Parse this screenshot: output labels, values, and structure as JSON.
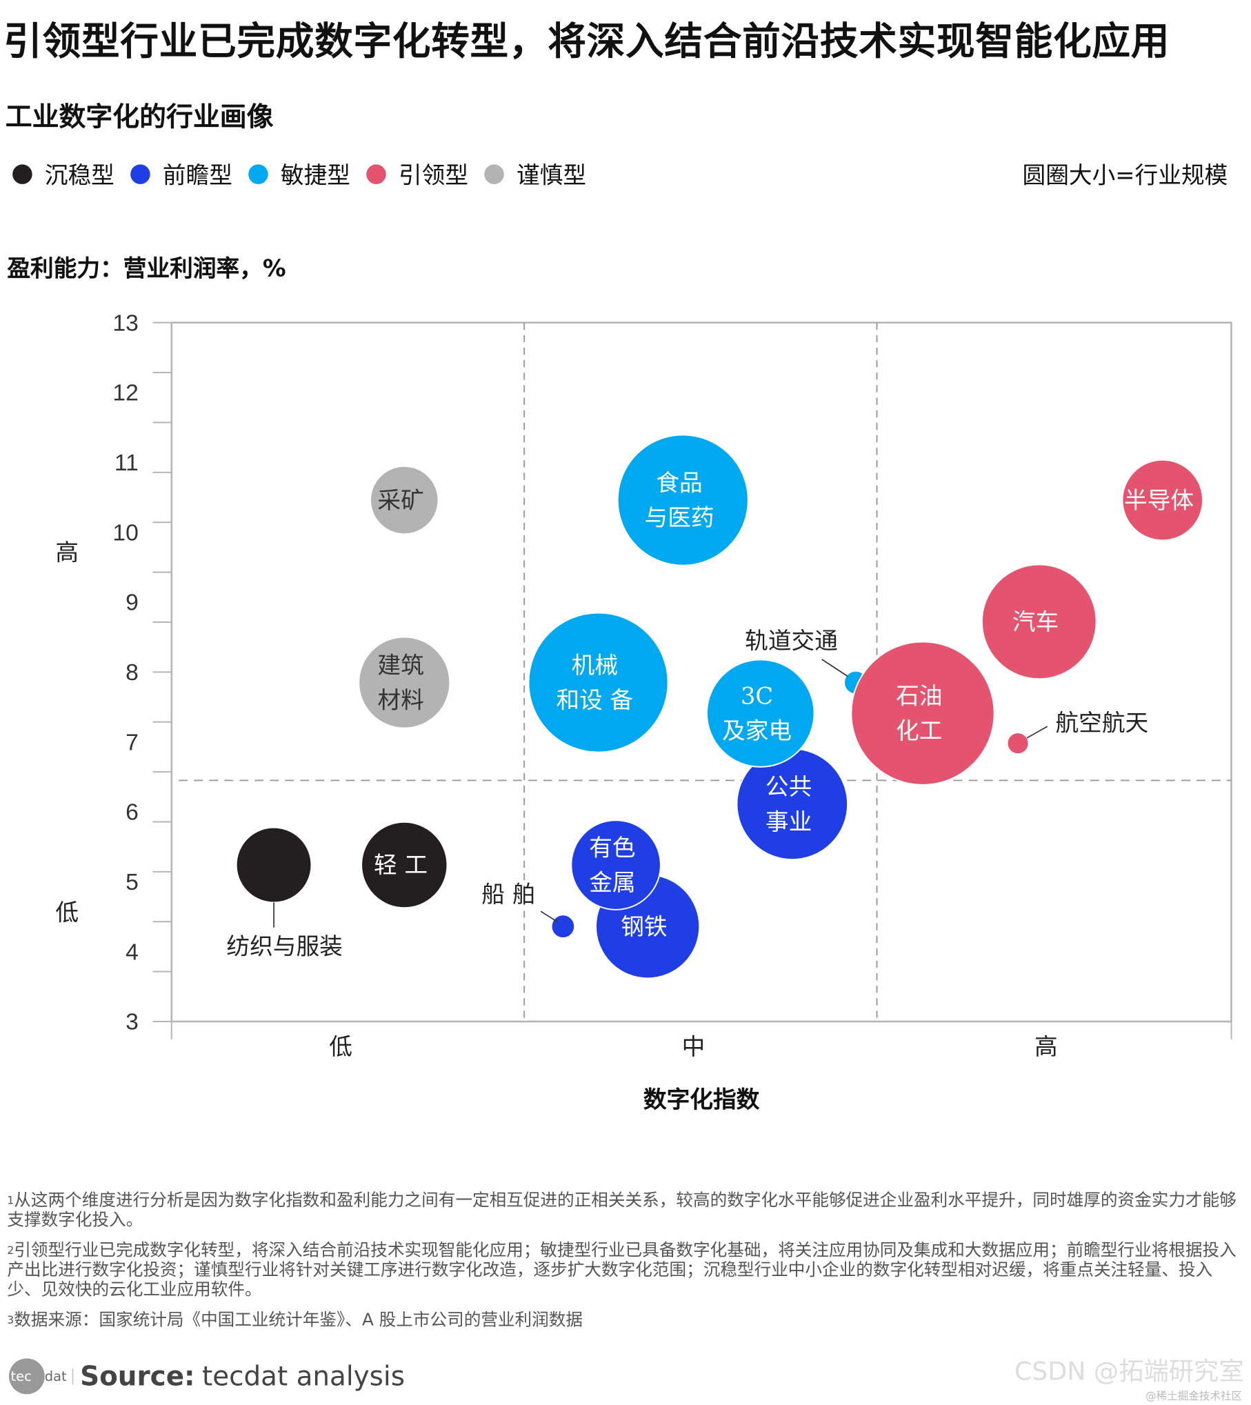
{
  "title": "引领型行业已完成数字化转型，将深入结合前沿技术实现智能化应用",
  "subtitle": "工业数字化的行业画像",
  "legend": [
    {
      "label": "沉稳型",
      "color": "#231f20"
    },
    {
      "label": "前瞻型",
      "color": "#1f3fe5"
    },
    {
      "label": "敏捷型",
      "color": "#00a8ef"
    },
    {
      "label": "引领型",
      "color": "#e5546f"
    },
    {
      "label": "谨慎型",
      "color": "#b3b3b3"
    }
  ],
  "size_note": "圆圈大小=行业规模",
  "chart_data": {
    "type": "scatter",
    "subtype": "bubble",
    "ylabel": "盈利能力：营业利润率，%",
    "xlabel": "数字化指数",
    "ylim": [
      3,
      13
    ],
    "yticks": [
      "3",
      "4",
      "5",
      "6",
      "7",
      "8",
      "9",
      "10",
      "11",
      "12",
      "13"
    ],
    "y_level_labels": {
      "high": "高",
      "low": "低"
    },
    "xlim": [
      0,
      3
    ],
    "x_categories": [
      "低",
      "中",
      "高"
    ],
    "x_dividers": [
      1,
      2
    ],
    "y_divider": 6.45,
    "points": [
      {
        "name": [
          "采矿"
        ],
        "type": "谨慎型",
        "x": 0.66,
        "y": 10.46,
        "size": 38
      },
      {
        "name": [
          "建筑",
          "材料"
        ],
        "type": "谨慎型",
        "x": 0.66,
        "y": 7.85,
        "size": 51
      },
      {
        "name": [
          "纺织与服装"
        ],
        "type": "沉稳型",
        "x": 0.29,
        "y": 5.24,
        "size": 42,
        "outside": true
      },
      {
        "name": [
          "轻 工"
        ],
        "type": "沉稳型",
        "x": 0.66,
        "y": 5.24,
        "size": 48
      },
      {
        "name": [
          "食品",
          "与医药"
        ],
        "type": "敏捷型",
        "x": 1.45,
        "y": 10.46,
        "size": 73
      },
      {
        "name": [
          "机械",
          "和设  备"
        ],
        "type": "敏捷型",
        "x": 1.21,
        "y": 7.85,
        "size": 78
      },
      {
        "name": [
          "公共",
          "事业"
        ],
        "type": "前瞻型",
        "x": 1.76,
        "y": 6.11,
        "size": 62
      },
      {
        "name": [
          "3C",
          "及家电"
        ],
        "type": "敏捷型",
        "x": 1.67,
        "y": 7.41,
        "size": 60
      },
      {
        "name": [
          "轨道交通"
        ],
        "type": "敏捷型",
        "x": 1.94,
        "y": 7.85,
        "size": 13,
        "outside": true
      },
      {
        "name": [
          "钢铁"
        ],
        "type": "前瞻型",
        "x": 1.35,
        "y": 4.36,
        "size": 58
      },
      {
        "name": [
          "有色",
          "金属"
        ],
        "type": "前瞻型",
        "x": 1.26,
        "y": 5.24,
        "size": 50
      },
      {
        "name": [
          "船 舶"
        ],
        "type": "前瞻型",
        "x": 1.11,
        "y": 4.36,
        "size": 13,
        "outside": true
      },
      {
        "name": [
          "石油",
          "化工"
        ],
        "type": "引领型",
        "x": 2.13,
        "y": 7.41,
        "size": 80
      },
      {
        "name": [
          "汽车"
        ],
        "type": "引领型",
        "x": 2.46,
        "y": 8.72,
        "size": 64
      },
      {
        "name": [
          "半导体"
        ],
        "type": "引领型",
        "x": 2.81,
        "y": 10.46,
        "size": 45
      },
      {
        "name": [
          "航空航天"
        ],
        "type": "引领型",
        "x": 2.4,
        "y": 6.98,
        "size": 12,
        "outside": true
      }
    ]
  },
  "footnotes": [
    {
      "sup": "1",
      "text": "从这两个维度进行分析是因为数字化指数和盈利能力之间有一定相互促进的正相关关系，较高的数字化水平能够促进企业盈利水平提升，同时雄厚的资金实力才能够支撑数字化投入。"
    },
    {
      "sup": "2",
      "text": "引领型行业已完成数字化转型，将深入结合前沿技术实现智能化应用；敏捷型行业已具备数字化基础，将关注应用协同及集成和大数据应用；前瞻型行业将根据投入产出比进行数字化投资；谨慎型行业将针对关键工序进行数字化改造，逐步扩大数字化范围；沉稳型行业中小企业的数字化转型相对迟缓，将重点关注轻量、投入少、见效快的云化工业应用软件。"
    },
    {
      "sup": "3",
      "text": "数据来源：国家统计局《中国工业统计年鉴》、A 股上市公司的营业利润数据"
    }
  ],
  "source": {
    "logo": "tecdat",
    "label": "Source:",
    "text": "tecdat analysis"
  },
  "watermark": {
    "main": "CSDN @拓端研究室",
    "sub": "@稀土掘金技术社区"
  }
}
